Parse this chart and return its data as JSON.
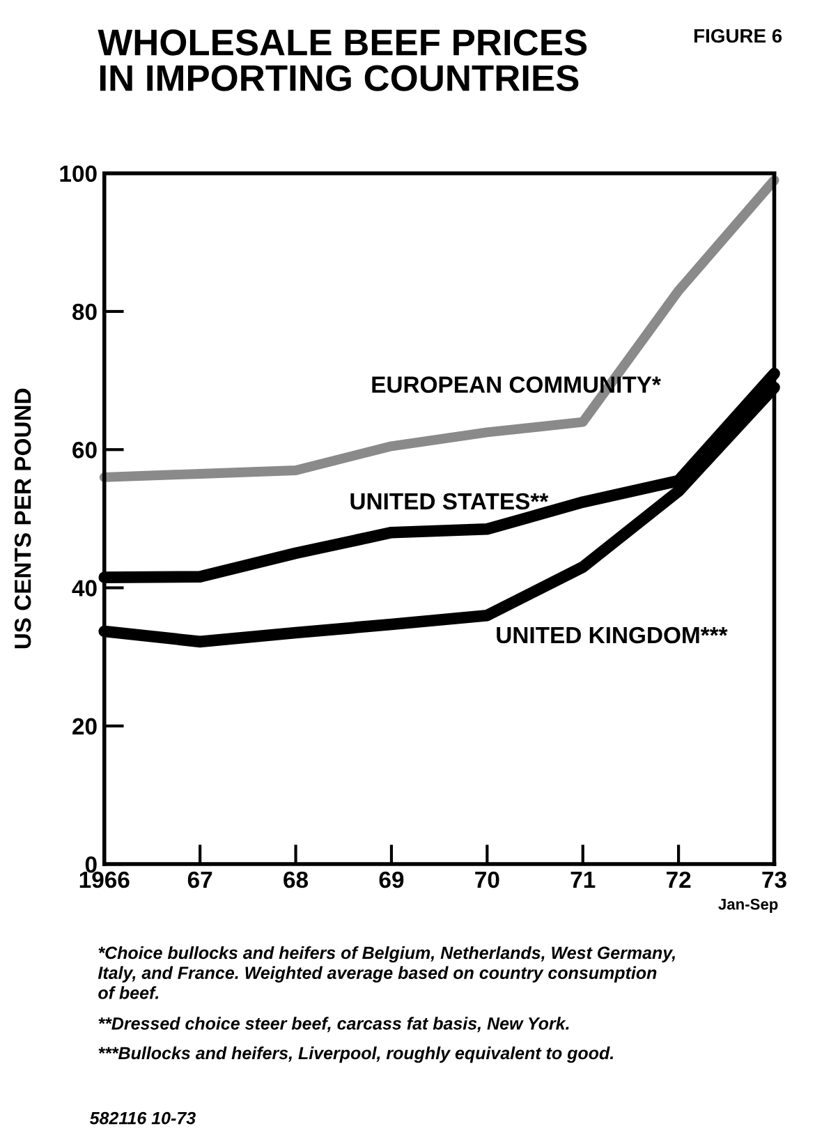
{
  "chart_data": {
    "type": "line",
    "title": "WHOLESALE BEEF PRICES\nIN IMPORTING COUNTRIES",
    "ylabel": "US CENTS PER POUND",
    "x": [
      1966,
      1967,
      1968,
      1969,
      1970,
      1971,
      1972,
      1973
    ],
    "series": [
      {
        "name": "EUROPEAN COMMUNITY*",
        "color": "#8a8a8a",
        "values": [
          56,
          56.5,
          57,
          60.5,
          62.5,
          64,
          83,
          99
        ]
      },
      {
        "name": "UNITED STATES**",
        "color": "#000000",
        "values": [
          41.5,
          41.6,
          45,
          48,
          48.5,
          52.4,
          55.5,
          71
        ]
      },
      {
        "name": "UNITED KINGDOM***",
        "color": "#000000",
        "values": [
          33.7,
          32.2,
          33.5,
          34.7,
          36,
          43,
          54,
          69
        ]
      }
    ],
    "xlim": [
      1966,
      1973
    ],
    "ylim": [
      0,
      100
    ],
    "xticks": [
      {
        "value": 1966,
        "label": "1966"
      },
      {
        "value": 1967,
        "label": "67"
      },
      {
        "value": 1968,
        "label": "68"
      },
      {
        "value": 1969,
        "label": "69"
      },
      {
        "value": 1970,
        "label": "70"
      },
      {
        "value": 1971,
        "label": "71"
      },
      {
        "value": 1972,
        "label": "72"
      },
      {
        "value": 1973,
        "label": "73"
      }
    ],
    "yticks": [
      0,
      20,
      40,
      60,
      80,
      100
    ],
    "grid": false,
    "legend": false,
    "marker": "none",
    "line_style": "solid",
    "annotations": [
      "FIGURE 6",
      "Jan-Sep",
      "*Choice bullocks and heifers of Belgium, Netherlands, West Germany,\nItaly, and France. Weighted average based on country consumption\nof beef.",
      "**Dressed choice steer beef, carcass fat basis, New York.",
      "***Bullocks and heifers, Liverpool, roughly equivalent to good.",
      "582116 10-73"
    ]
  }
}
